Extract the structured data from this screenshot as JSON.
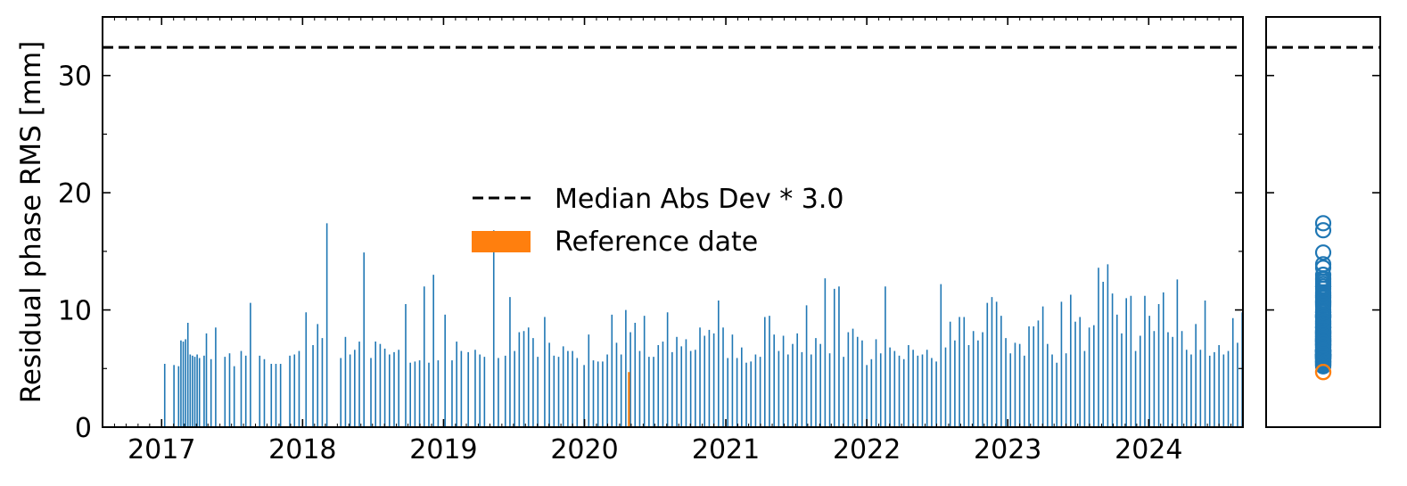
{
  "chart_data": [
    {
      "type": "bar",
      "xlabel": "",
      "ylabel": "Residual phase RMS [mm]",
      "x_axis": "date",
      "xlim": [
        "2016-08-01",
        "2024-09-01"
      ],
      "ylim": [
        0,
        35
      ],
      "x_ticks": [
        "2017",
        "2018",
        "2019",
        "2020",
        "2021",
        "2022",
        "2023",
        "2024"
      ],
      "y_ticks": [
        "0",
        "10",
        "20",
        "30"
      ],
      "threshold": 32.4,
      "legend": {
        "placement": "center",
        "entries": [
          {
            "label": "Median Abs Dev * 3.0",
            "style": "dashed-line",
            "color": "#000000"
          },
          {
            "label": "Reference date",
            "style": "patch",
            "color": "#ff7f0e"
          }
        ]
      },
      "colors": {
        "bars": "#1f77b4",
        "reference": "#ff7f0e",
        "threshold": "#000000"
      },
      "reference": {
        "date": "2020-04-25",
        "value": 4.7
      },
      "bars": [
        [
          "2017-01-09",
          5.4
        ],
        [
          "2017-02-02",
          5.3
        ],
        [
          "2017-02-14",
          5.2
        ],
        [
          "2017-02-20",
          7.4
        ],
        [
          "2017-02-26",
          7.3
        ],
        [
          "2017-03-04",
          7.5
        ],
        [
          "2017-03-10",
          8.9
        ],
        [
          "2017-03-16",
          6.2
        ],
        [
          "2017-03-22",
          6.1
        ],
        [
          "2017-03-28",
          6.0
        ],
        [
          "2017-04-03",
          6.2
        ],
        [
          "2017-04-09",
          5.9
        ],
        [
          "2017-04-21",
          6.1
        ],
        [
          "2017-04-27",
          8.0
        ],
        [
          "2017-05-09",
          5.8
        ],
        [
          "2017-05-21",
          8.5
        ],
        [
          "2017-06-14",
          6.0
        ],
        [
          "2017-06-26",
          6.3
        ],
        [
          "2017-07-08",
          5.2
        ],
        [
          "2017-07-26",
          6.5
        ],
        [
          "2017-08-07",
          6.1
        ],
        [
          "2017-08-19",
          10.6
        ],
        [
          "2017-09-12",
          6.1
        ],
        [
          "2017-09-24",
          5.8
        ],
        [
          "2017-10-12",
          5.4
        ],
        [
          "2017-10-24",
          5.4
        ],
        [
          "2017-11-05",
          5.4
        ],
        [
          "2017-11-29",
          6.1
        ],
        [
          "2017-12-11",
          6.2
        ],
        [
          "2017-12-23",
          6.5
        ],
        [
          "2018-01-10",
          9.8
        ],
        [
          "2018-01-28",
          7.0
        ],
        [
          "2018-02-09",
          8.8
        ],
        [
          "2018-02-21",
          7.6
        ],
        [
          "2018-03-05",
          17.4
        ],
        [
          "2018-04-10",
          5.9
        ],
        [
          "2018-04-22",
          7.7
        ],
        [
          "2018-05-04",
          6.2
        ],
        [
          "2018-05-16",
          6.6
        ],
        [
          "2018-05-28",
          7.3
        ],
        [
          "2018-06-09",
          14.9
        ],
        [
          "2018-06-27",
          5.9
        ],
        [
          "2018-07-09",
          7.3
        ],
        [
          "2018-07-21",
          7.1
        ],
        [
          "2018-08-02",
          6.7
        ],
        [
          "2018-08-14",
          6.2
        ],
        [
          "2018-08-26",
          6.4
        ],
        [
          "2018-09-07",
          6.6
        ],
        [
          "2018-09-25",
          10.5
        ],
        [
          "2018-10-07",
          5.5
        ],
        [
          "2018-10-19",
          5.6
        ],
        [
          "2018-10-31",
          5.7
        ],
        [
          "2018-11-12",
          12.0
        ],
        [
          "2018-11-24",
          5.5
        ],
        [
          "2018-12-06",
          13.0
        ],
        [
          "2018-12-18",
          5.7
        ],
        [
          "2019-01-05",
          9.6
        ],
        [
          "2019-01-23",
          5.7
        ],
        [
          "2019-02-04",
          7.3
        ],
        [
          "2019-02-16",
          6.5
        ],
        [
          "2019-03-06",
          6.4
        ],
        [
          "2019-03-24",
          6.6
        ],
        [
          "2019-04-05",
          6.2
        ],
        [
          "2019-04-17",
          6.0
        ],
        [
          "2019-05-11",
          16.8
        ],
        [
          "2019-05-23",
          5.9
        ],
        [
          "2019-06-10",
          6.1
        ],
        [
          "2019-06-22",
          11.1
        ],
        [
          "2019-07-04",
          6.5
        ],
        [
          "2019-07-16",
          8.1
        ],
        [
          "2019-07-28",
          8.2
        ],
        [
          "2019-08-09",
          8.5
        ],
        [
          "2019-08-21",
          7.6
        ],
        [
          "2019-09-02",
          6.0
        ],
        [
          "2019-09-20",
          9.4
        ],
        [
          "2019-10-02",
          7.2
        ],
        [
          "2019-10-14",
          6.1
        ],
        [
          "2019-10-26",
          6.0
        ],
        [
          "2019-11-07",
          6.9
        ],
        [
          "2019-11-19",
          6.5
        ],
        [
          "2019-12-01",
          6.5
        ],
        [
          "2019-12-13",
          5.9
        ],
        [
          "2019-12-31",
          5.3
        ],
        [
          "2020-01-12",
          7.9
        ],
        [
          "2020-01-24",
          5.7
        ],
        [
          "2020-02-05",
          5.6
        ],
        [
          "2020-02-17",
          5.6
        ],
        [
          "2020-02-29",
          6.2
        ],
        [
          "2020-03-12",
          9.6
        ],
        [
          "2020-03-24",
          7.2
        ],
        [
          "2020-04-05",
          6.2
        ],
        [
          "2020-04-17",
          10.0
        ],
        [
          "2020-04-29",
          8.1
        ],
        [
          "2020-05-11",
          8.9
        ],
        [
          "2020-05-23",
          6.5
        ],
        [
          "2020-06-04",
          9.5
        ],
        [
          "2020-06-16",
          6.0
        ],
        [
          "2020-06-28",
          6.0
        ],
        [
          "2020-07-10",
          7.0
        ],
        [
          "2020-07-22",
          7.3
        ],
        [
          "2020-08-03",
          9.8
        ],
        [
          "2020-08-15",
          6.4
        ],
        [
          "2020-08-27",
          7.7
        ],
        [
          "2020-09-08",
          6.9
        ],
        [
          "2020-09-20",
          7.5
        ],
        [
          "2020-10-02",
          6.5
        ],
        [
          "2020-10-14",
          6.6
        ],
        [
          "2020-10-26",
          8.5
        ],
        [
          "2020-11-07",
          7.8
        ],
        [
          "2020-11-19",
          8.3
        ],
        [
          "2020-12-01",
          8.0
        ],
        [
          "2020-12-13",
          10.8
        ],
        [
          "2020-12-25",
          8.5
        ],
        [
          "2021-01-06",
          5.9
        ],
        [
          "2021-01-18",
          7.9
        ],
        [
          "2021-01-30",
          5.9
        ],
        [
          "2021-02-11",
          6.8
        ],
        [
          "2021-02-23",
          5.5
        ],
        [
          "2021-03-07",
          5.6
        ],
        [
          "2021-03-19",
          6.2
        ],
        [
          "2021-03-31",
          6.0
        ],
        [
          "2021-04-12",
          9.4
        ],
        [
          "2021-04-24",
          9.5
        ],
        [
          "2021-05-06",
          7.9
        ],
        [
          "2021-05-18",
          6.5
        ],
        [
          "2021-05-30",
          7.8
        ],
        [
          "2021-06-11",
          6.2
        ],
        [
          "2021-06-23",
          7.1
        ],
        [
          "2021-07-05",
          8.0
        ],
        [
          "2021-07-17",
          6.4
        ],
        [
          "2021-07-29",
          10.4
        ],
        [
          "2021-08-10",
          6.2
        ],
        [
          "2021-08-22",
          7.6
        ],
        [
          "2021-09-03",
          7.1
        ],
        [
          "2021-09-15",
          12.7
        ],
        [
          "2021-09-27",
          6.3
        ],
        [
          "2021-10-09",
          11.8
        ],
        [
          "2021-10-21",
          12.0
        ],
        [
          "2021-11-02",
          6.0
        ],
        [
          "2021-11-14",
          8.1
        ],
        [
          "2021-11-26",
          8.4
        ],
        [
          "2021-12-08",
          7.7
        ],
        [
          "2021-12-20",
          7.4
        ],
        [
          "2022-01-01",
          5.3
        ],
        [
          "2022-01-13",
          5.8
        ],
        [
          "2022-01-25",
          7.5
        ],
        [
          "2022-02-06",
          6.3
        ],
        [
          "2022-02-18",
          12.0
        ],
        [
          "2022-03-02",
          6.8
        ],
        [
          "2022-03-14",
          6.5
        ],
        [
          "2022-03-26",
          6.1
        ],
        [
          "2022-04-07",
          5.8
        ],
        [
          "2022-04-19",
          7.0
        ],
        [
          "2022-05-01",
          6.6
        ],
        [
          "2022-05-13",
          6.1
        ],
        [
          "2022-05-25",
          6.2
        ],
        [
          "2022-06-06",
          6.6
        ],
        [
          "2022-06-18",
          5.9
        ],
        [
          "2022-06-30",
          5.6
        ],
        [
          "2022-07-12",
          12.2
        ],
        [
          "2022-07-24",
          6.8
        ],
        [
          "2022-08-05",
          9.0
        ],
        [
          "2022-08-17",
          7.4
        ],
        [
          "2022-08-29",
          9.4
        ],
        [
          "2022-09-10",
          9.4
        ],
        [
          "2022-09-22",
          7.0
        ],
        [
          "2022-10-04",
          8.2
        ],
        [
          "2022-10-16",
          7.4
        ],
        [
          "2022-10-28",
          8.1
        ],
        [
          "2022-11-09",
          10.6
        ],
        [
          "2022-11-21",
          11.1
        ],
        [
          "2022-12-03",
          10.7
        ],
        [
          "2022-12-15",
          9.5
        ],
        [
          "2022-12-27",
          7.6
        ],
        [
          "2023-01-08",
          6.3
        ],
        [
          "2023-01-20",
          7.2
        ],
        [
          "2023-02-01",
          7.1
        ],
        [
          "2023-02-13",
          6.1
        ],
        [
          "2023-02-25",
          8.6
        ],
        [
          "2023-03-09",
          8.6
        ],
        [
          "2023-03-21",
          9.1
        ],
        [
          "2023-04-02",
          10.3
        ],
        [
          "2023-04-14",
          7.1
        ],
        [
          "2023-04-26",
          6.2
        ],
        [
          "2023-05-08",
          5.5
        ],
        [
          "2023-05-20",
          10.7
        ],
        [
          "2023-06-01",
          6.3
        ],
        [
          "2023-06-13",
          11.3
        ],
        [
          "2023-06-25",
          9.0
        ],
        [
          "2023-07-07",
          9.4
        ],
        [
          "2023-07-19",
          6.5
        ],
        [
          "2023-07-31",
          8.5
        ],
        [
          "2023-08-12",
          8.7
        ],
        [
          "2023-08-24",
          13.6
        ],
        [
          "2023-09-05",
          12.4
        ],
        [
          "2023-09-17",
          13.9
        ],
        [
          "2023-09-29",
          11.4
        ],
        [
          "2023-10-11",
          9.6
        ],
        [
          "2023-10-23",
          8.0
        ],
        [
          "2023-11-04",
          11.0
        ],
        [
          "2023-11-16",
          11.2
        ],
        [
          "2023-11-28",
          6.5
        ],
        [
          "2023-12-10",
          7.8
        ],
        [
          "2023-12-22",
          11.2
        ],
        [
          "2024-01-03",
          9.5
        ],
        [
          "2024-01-15",
          8.2
        ],
        [
          "2024-01-27",
          10.5
        ],
        [
          "2024-02-08",
          11.5
        ],
        [
          "2024-02-20",
          8.1
        ],
        [
          "2024-03-03",
          7.7
        ],
        [
          "2024-03-15",
          12.6
        ],
        [
          "2024-03-27",
          8.2
        ],
        [
          "2024-04-08",
          6.6
        ],
        [
          "2024-04-20",
          6.2
        ],
        [
          "2024-05-02",
          8.8
        ],
        [
          "2024-05-14",
          6.6
        ],
        [
          "2024-05-26",
          10.8
        ],
        [
          "2024-06-07",
          6.1
        ],
        [
          "2024-06-19",
          6.4
        ],
        [
          "2024-07-01",
          7.0
        ],
        [
          "2024-07-13",
          6.2
        ],
        [
          "2024-07-25",
          6.5
        ],
        [
          "2024-08-06",
          9.3
        ],
        [
          "2024-08-18",
          7.2
        ],
        [
          "2024-08-30",
          9.8
        ]
      ]
    },
    {
      "type": "scatter",
      "description_units": "mm",
      "ylim": [
        0,
        35
      ],
      "threshold": 32.4,
      "marker": "open-circle",
      "colors": {
        "points": "#1f77b4",
        "reference": "#ff7f0e"
      },
      "reference_value": 4.7
    }
  ]
}
